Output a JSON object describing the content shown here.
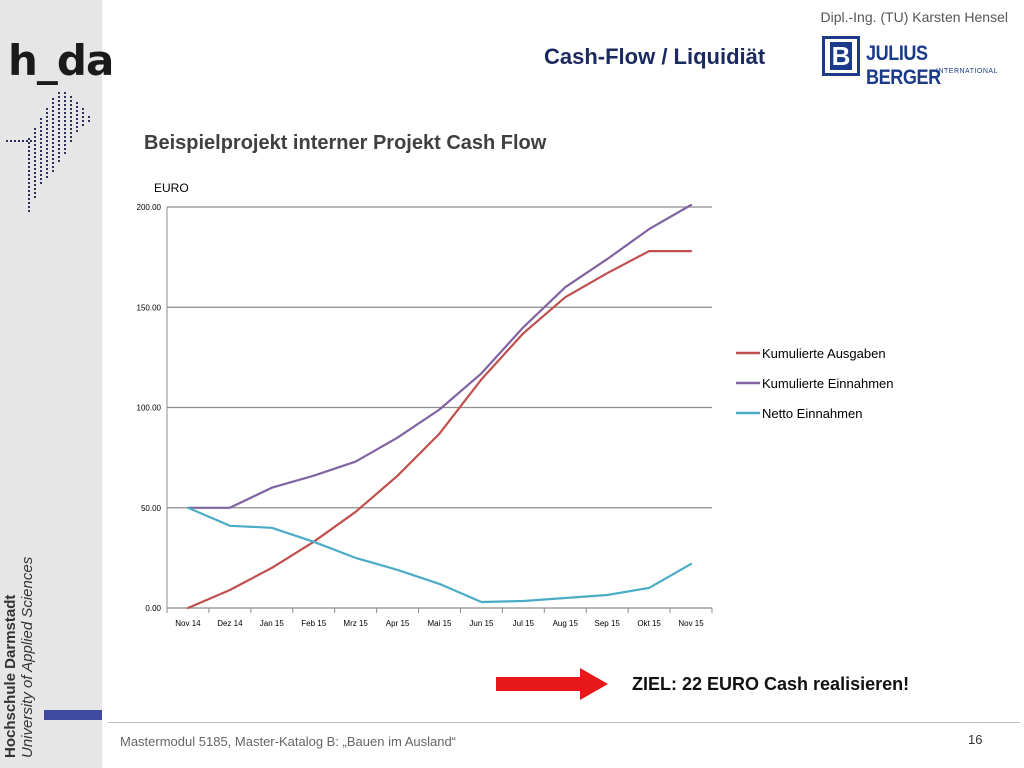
{
  "header": {
    "logo_text": "h_da",
    "author": "Dipl.-Ing. (TU) Karsten Hensel",
    "title": "Cash-Flow / Liquidiät",
    "partner_logo": {
      "letter": "B",
      "name": "JULIUS BERGER",
      "sub": "INTERNATIONAL"
    }
  },
  "sidebar": {
    "line1": "Hochschule Darmstadt",
    "line2": "University of Applied Sciences"
  },
  "slide": {
    "subtitle": "Beispielprojekt interner Projekt Cash Flow",
    "goal_text": "ZIEL: 22 EURO Cash realisieren!",
    "footer": "Mastermodul 5185, Master-Katalog B: „Bauen im Ausland“",
    "page_number": "16"
  },
  "colors": {
    "ausgaben": "#c0504d",
    "einnahmen": "#8064a2",
    "netto": "#4bacc6",
    "arrow": "#e8171b",
    "brand_blue": "#1b3a8a"
  },
  "chart_data": {
    "type": "line",
    "title": "",
    "ylabel": "EURO",
    "xlabel": "",
    "categories": [
      "Nov 14",
      "Dez 14",
      "Jan 15",
      "Feb 15",
      "Mrz 15",
      "Apr 15",
      "Mai 15",
      "Jun 15",
      "Jul 15",
      "Aug 15",
      "Sep 15",
      "Okt 15",
      "Nov 15"
    ],
    "ylim": [
      0,
      200
    ],
    "yticks": [
      "0.00",
      "50.00",
      "100.00",
      "150.00",
      "200.00"
    ],
    "grid": true,
    "legend_position": "right",
    "series": [
      {
        "name": "Kumulierte Ausgaben",
        "color": "#c0504d",
        "values": [
          0,
          9,
          20,
          33,
          48,
          66,
          87,
          114,
          137,
          155,
          167,
          178,
          178
        ]
      },
      {
        "name": "Kumulierte Einnahmen",
        "color": "#8064a2",
        "values": [
          50,
          50,
          60,
          66,
          73,
          85,
          99,
          117,
          140,
          160,
          174,
          189,
          201
        ]
      },
      {
        "name": "Netto Einnahmen",
        "color": "#4bacc6",
        "values": [
          50,
          41,
          40,
          33,
          25,
          19,
          12,
          3,
          3.5,
          5,
          6.5,
          10,
          22
        ]
      }
    ]
  }
}
